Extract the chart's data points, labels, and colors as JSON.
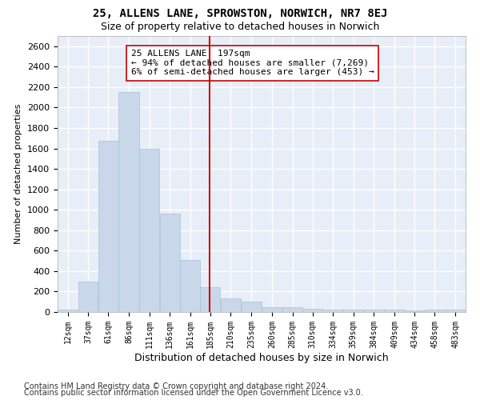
{
  "title1": "25, ALLENS LANE, SPROWSTON, NORWICH, NR7 8EJ",
  "title2": "Size of property relative to detached houses in Norwich",
  "xlabel": "Distribution of detached houses by size in Norwich",
  "ylabel": "Number of detached properties",
  "bar_color": "#c8d8ea",
  "bar_edgecolor": "#a8c0d4",
  "vline_x": 197,
  "vline_color": "#cc0000",
  "annotation_line1": "25 ALLENS LANE: 197sqm",
  "annotation_line2": "← 94% of detached houses are smaller (7,269)",
  "annotation_line3": "6% of semi-detached houses are larger (453) →",
  "bin_edges": [
    12,
    37,
    61,
    86,
    111,
    136,
    161,
    185,
    210,
    235,
    260,
    285,
    310,
    334,
    359,
    384,
    409,
    434,
    458,
    483,
    508
  ],
  "bar_heights": [
    25,
    300,
    1675,
    2150,
    1600,
    960,
    505,
    240,
    130,
    100,
    50,
    45,
    35,
    25,
    25,
    20,
    20,
    15,
    20,
    25
  ],
  "ylim": [
    0,
    2700
  ],
  "yticks": [
    0,
    200,
    400,
    600,
    800,
    1000,
    1200,
    1400,
    1600,
    1800,
    2000,
    2200,
    2400,
    2600
  ],
  "background_color": "#e8eef8",
  "fig_background": "#ffffff",
  "grid_color": "#ffffff",
  "footer1": "Contains HM Land Registry data © Crown copyright and database right 2024.",
  "footer2": "Contains public sector information licensed under the Open Government Licence v3.0.",
  "title1_fontsize": 10,
  "title2_fontsize": 9,
  "ylabel_fontsize": 8,
  "xlabel_fontsize": 9,
  "annotation_fontsize": 8,
  "footer_fontsize": 7,
  "ytick_fontsize": 8,
  "xtick_fontsize": 7
}
